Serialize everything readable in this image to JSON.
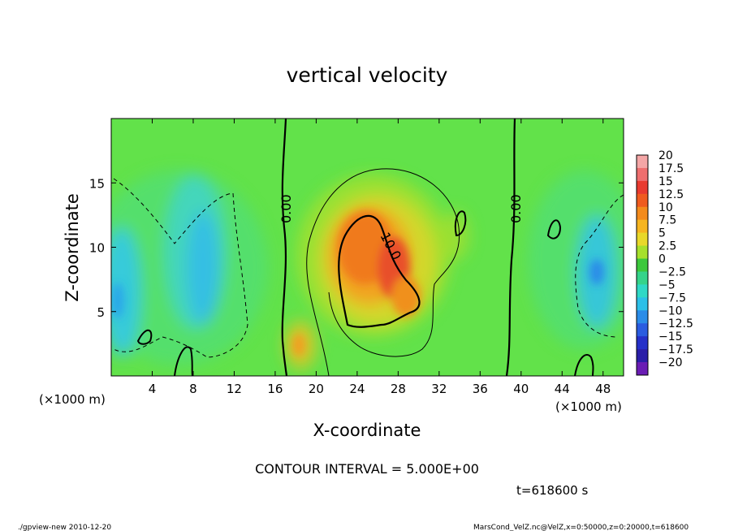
{
  "chart_data": {
    "type": "heatmap",
    "title": "vertical velocity",
    "xlabel": "X-coordinate",
    "ylabel": "Z-coordinate",
    "x_unit_left": "(×1000 m)",
    "x_unit_right": "(×1000 m)",
    "y_unit": "(×1000 m)",
    "xlim": [
      0,
      50
    ],
    "ylim": [
      0,
      20
    ],
    "x_ticks": [
      4,
      8,
      12,
      16,
      20,
      24,
      28,
      32,
      36,
      40,
      44,
      48
    ],
    "y_ticks": [
      5,
      10,
      15
    ],
    "colorbar": {
      "labels": [
        "20",
        "17.5",
        "15",
        "12.5",
        "10",
        "7.5",
        "5",
        "2.5",
        "0",
        "-2.5",
        "-5",
        "-7.5",
        "-10",
        "-12.5",
        "-15",
        "-17.5",
        "-20"
      ],
      "colors": [
        "#f4a6a6",
        "#ee6e6e",
        "#e83a2f",
        "#ef5b1f",
        "#f38b1c",
        "#f6b520",
        "#e8d82a",
        "#a6e02c",
        "#3cc83c",
        "#35d38a",
        "#2fd8c6",
        "#2cbfe8",
        "#2a8ce8",
        "#2a5ce0",
        "#2530c8",
        "#2a1ea8",
        "#6a1cb4"
      ]
    },
    "contour_labels": [
      {
        "text": "0.00",
        "x": 17.3,
        "z": 13.2,
        "rotate": -90
      },
      {
        "text": "10.0",
        "x": 26.5,
        "z": 10.5,
        "rotate": 62
      },
      {
        "text": "0.00",
        "x": 39.5,
        "z": 13.3,
        "rotate": -90
      }
    ],
    "contour_interval_text": "CONTOUR INTERVAL = 5.000E+00",
    "time_text": "t=618600 s"
  },
  "footer": {
    "left": "./gpview-new  2010-12-20",
    "right": "MarsCond_VelZ.nc@VelZ,x=0:50000,z=0:20000,t=618600"
  }
}
